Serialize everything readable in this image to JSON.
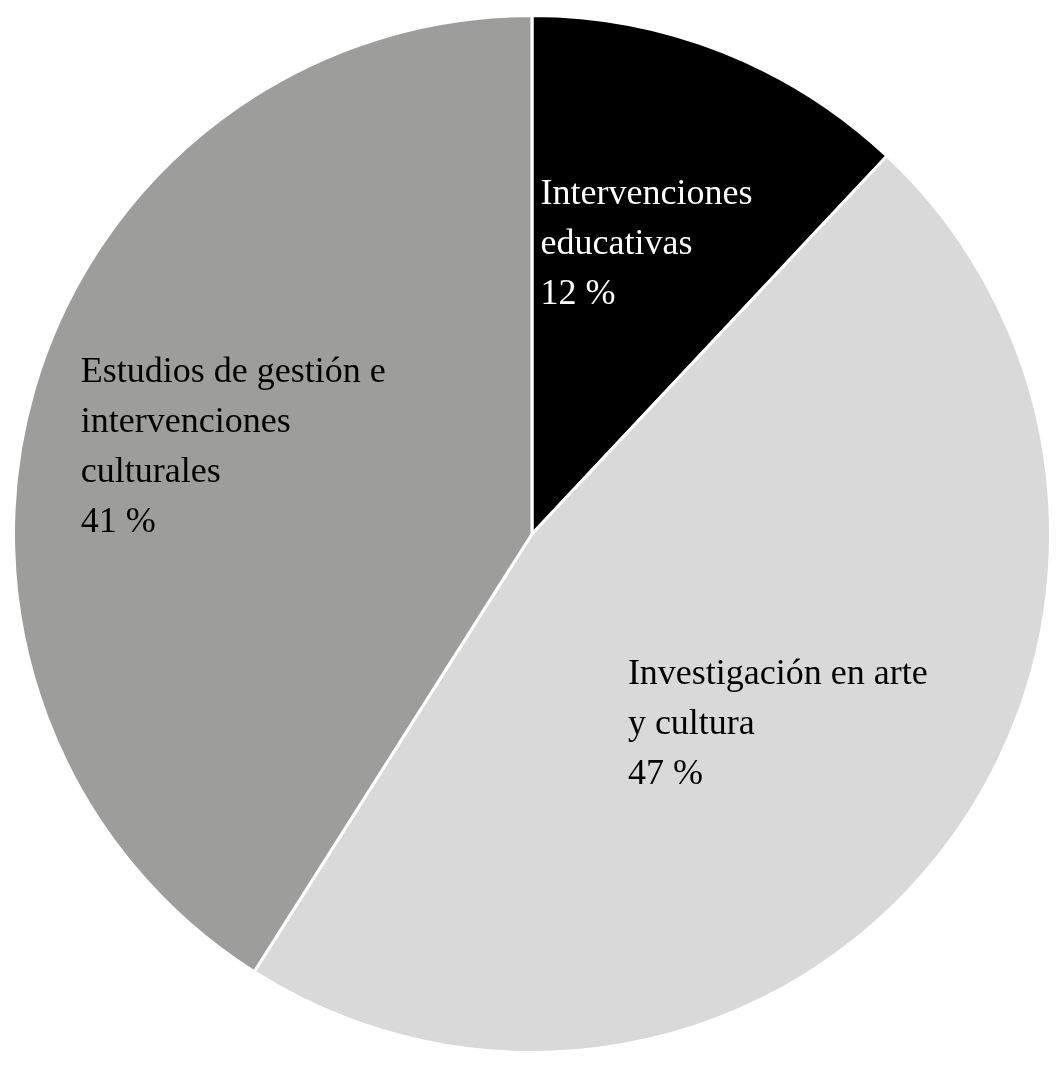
{
  "chart_data": {
    "type": "pie",
    "categories": [
      "Intervenciones educativas",
      "Investigación en arte y cultura",
      "Estudios de gestión e intervenciones culturales"
    ],
    "values": [
      12,
      47,
      41
    ],
    "colors": [
      "#000000",
      "#d9d9d9",
      "#9d9d9c"
    ],
    "value_labels": [
      "12 %",
      "47 %",
      "41 %"
    ],
    "legend": false
  }
}
